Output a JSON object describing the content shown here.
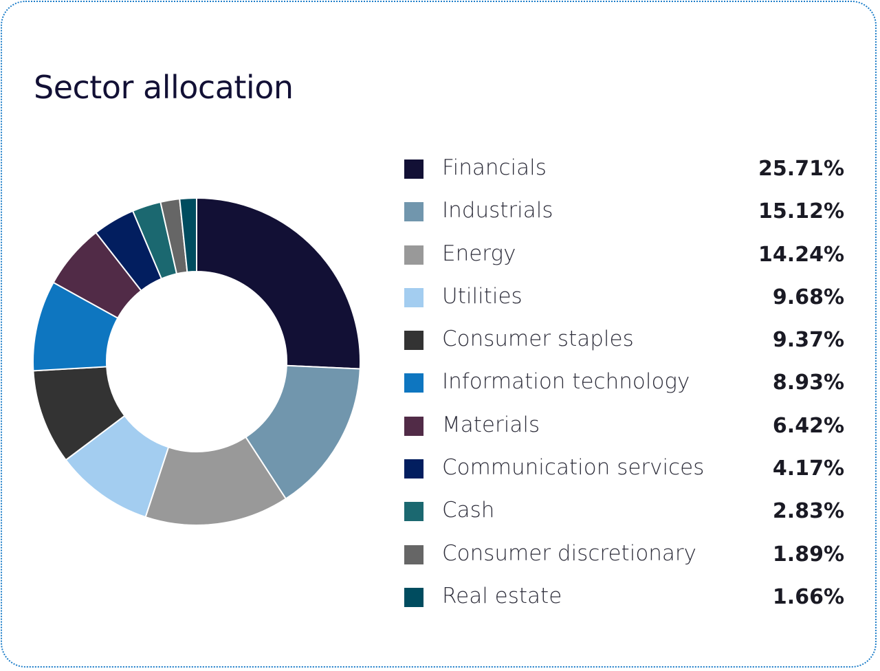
{
  "title": "Sector allocation",
  "chart_data": {
    "type": "pie",
    "subtype": "donut",
    "title": "Sector allocation",
    "legend": "right",
    "categories": [
      "Financials",
      "Industrials",
      "Energy",
      "Utilities",
      "Consumer staples",
      "Information technology",
      "Materials",
      "Communication services",
      "Cash",
      "Consumer discretionary",
      "Real estate"
    ],
    "values": [
      25.71,
      15.12,
      14.24,
      9.68,
      9.37,
      8.93,
      6.42,
      4.17,
      2.83,
      1.89,
      1.66
    ],
    "labels": [
      "25.71%",
      "15.12%",
      "14.24%",
      "9.68%",
      "9.37%",
      "8.93%",
      "6.42%",
      "4.17%",
      "2.83%",
      "1.89%",
      "1.66%"
    ],
    "colors": [
      "#121035",
      "#7196ad",
      "#999999",
      "#a3cdf0",
      "#333333",
      "#0e76c0",
      "#512b47",
      "#021e5f",
      "#1b6870",
      "#666666",
      "#004c5f"
    ]
  }
}
